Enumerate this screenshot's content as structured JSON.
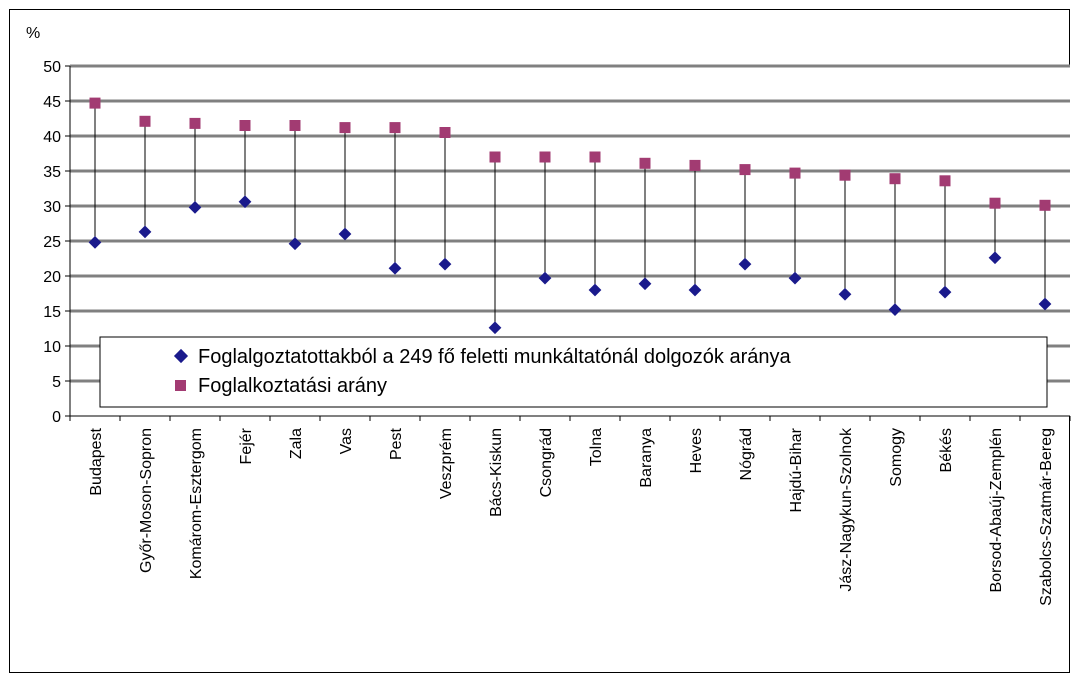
{
  "chart_data": {
    "type": "scatter",
    "ylabel": "%",
    "ylim": [
      0,
      50
    ],
    "yticks": [
      0,
      5,
      10,
      15,
      20,
      25,
      30,
      35,
      40,
      45,
      50
    ],
    "grid": true,
    "legend_position": "bottom-inside",
    "categories": [
      "Budapest",
      "Győr-Moson-Sopron",
      "Komárom-Esztergom",
      "Fejér",
      "Zala",
      "Vas",
      "Pest",
      "Veszprém",
      "Bács-Kiskun",
      "Csongrád",
      "Tolna",
      "Baranya",
      "Heves",
      "Nógrád",
      "Hajdú-Bihar",
      "Jász-Nagykun-Szolnok",
      "Somogy",
      "Békés",
      "Borsod-Abaúj-Zemplén",
      "Szabolcs-Szatmár-Bereg"
    ],
    "series": [
      {
        "name": "Foglalgoztatottakból  a 249 fő feletti munkáltatónál  dolgozók aránya",
        "marker": "diamond",
        "color": "#1a1a8c",
        "values": [
          24.8,
          26.3,
          29.8,
          30.6,
          24.6,
          26.0,
          21.1,
          21.7,
          12.6,
          19.7,
          18.0,
          18.9,
          18.0,
          21.7,
          19.7,
          17.4,
          15.2,
          17.7,
          22.6,
          16.0
        ]
      },
      {
        "name": "Foglalkoztatási arány",
        "marker": "square",
        "color": "#a23b72",
        "values": [
          44.7,
          42.1,
          41.8,
          41.5,
          41.5,
          41.2,
          41.2,
          40.5,
          37.0,
          37.0,
          37.0,
          36.1,
          35.8,
          35.2,
          34.7,
          34.4,
          33.9,
          33.6,
          30.4,
          30.1
        ]
      }
    ]
  }
}
